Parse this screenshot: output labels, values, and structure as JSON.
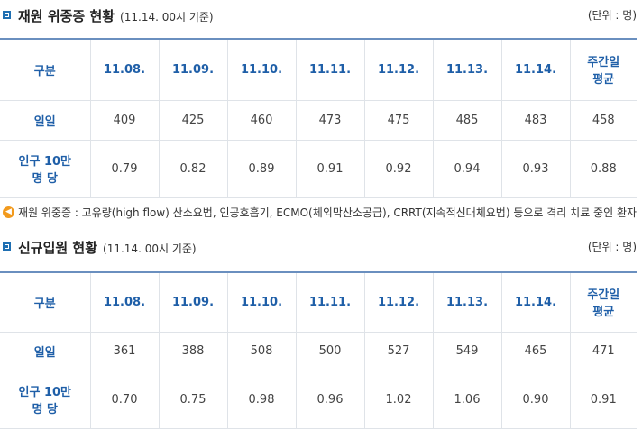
{
  "section1": {
    "title": "재원 위중증 현황",
    "subtitle": "(11.14. 00시 기준)",
    "unit": "(단위 : 명)",
    "corner": "구분",
    "dates": [
      "11.08.",
      "11.09.",
      "11.10.",
      "11.11.",
      "11.12.",
      "11.13.",
      "11.14."
    ],
    "avg_header_line1": "주간일",
    "avg_header_line2": "평균",
    "row1_label": "일일",
    "row1_values": [
      "409",
      "425",
      "460",
      "473",
      "475",
      "485",
      "483",
      "458"
    ],
    "row2_label_line1": "인구 10만",
    "row2_label_line2": "명 당",
    "row2_values": [
      "0.79",
      "0.82",
      "0.89",
      "0.91",
      "0.92",
      "0.94",
      "0.93",
      "0.88"
    ]
  },
  "note": {
    "icon": "speaker-icon",
    "text": "재원 위중증 : 고유량(high flow) 산소요법, 인공호흡기, ECMO(체외막산소공급), CRRT(지속적신대체요법) 등으로 격리 치료 중인 환자"
  },
  "section2": {
    "title": "신규입원 현황",
    "subtitle": "(11.14. 00시 기준)",
    "unit": "(단위 : 명)",
    "corner": "구분",
    "dates": [
      "11.08.",
      "11.09.",
      "11.10.",
      "11.11.",
      "11.12.",
      "11.13.",
      "11.14."
    ],
    "avg_header_line1": "주간일",
    "avg_header_line2": "평균",
    "row1_label": "일일",
    "row1_values": [
      "361",
      "388",
      "508",
      "500",
      "527",
      "549",
      "465",
      "471"
    ],
    "row2_label_line1": "인구 10만",
    "row2_label_line2": "명 당",
    "row2_values": [
      "0.70",
      "0.75",
      "0.98",
      "0.96",
      "1.02",
      "1.06",
      "0.90",
      "0.91"
    ]
  },
  "colors": {
    "accent": "#1f6fb2",
    "header_text": "#1f5fa8",
    "table_top_border": "#6a8fbf",
    "note_icon": "#f29a1d"
  }
}
